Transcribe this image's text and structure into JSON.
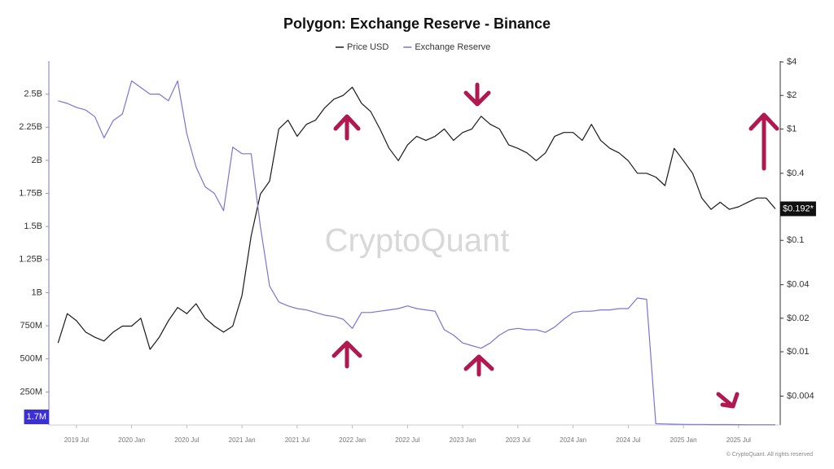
{
  "chart_data": {
    "type": "line",
    "title": "Polygon: Exchange Reserve - Binance",
    "watermark": "CryptoQuant",
    "footnote": "© CryptoQuant. All rights reserved",
    "x": [
      "2019-05",
      "2019-06",
      "2019-07",
      "2019-08",
      "2019-09",
      "2019-10",
      "2019-11",
      "2019-12",
      "2020-01",
      "2020-02",
      "2020-03",
      "2020-04",
      "2020-05",
      "2020-06",
      "2020-07",
      "2020-08",
      "2020-09",
      "2020-10",
      "2020-11",
      "2020-12",
      "2021-01",
      "2021-02",
      "2021-03",
      "2021-04",
      "2021-05",
      "2021-06",
      "2021-07",
      "2021-08",
      "2021-09",
      "2021-10",
      "2021-11",
      "2021-12",
      "2022-01",
      "2022-02",
      "2022-03",
      "2022-04",
      "2022-05",
      "2022-06",
      "2022-07",
      "2022-08",
      "2022-09",
      "2022-10",
      "2022-11",
      "2022-12",
      "2023-01",
      "2023-02",
      "2023-03",
      "2023-04",
      "2023-05",
      "2023-06",
      "2023-07",
      "2023-08",
      "2023-09",
      "2023-10",
      "2023-11",
      "2023-12",
      "2024-01",
      "2024-02",
      "2024-03",
      "2024-04",
      "2024-05",
      "2024-06",
      "2024-07",
      "2024-08",
      "2024-09",
      "2024-10",
      "2024-11",
      "2024-12",
      "2025-01",
      "2025-02",
      "2025-03",
      "2025-04",
      "2025-05",
      "2025-06",
      "2025-07",
      "2025-08",
      "2025-09",
      "2025-10",
      "2025-11"
    ],
    "xlim": [
      "2019-04",
      "2025-11"
    ],
    "xticks": [
      {
        "value": "2019-07",
        "label": "2019 Jul"
      },
      {
        "value": "2020-01",
        "label": "2020 Jan"
      },
      {
        "value": "2020-07",
        "label": "2020 Jul"
      },
      {
        "value": "2021-01",
        "label": "2021 Jan"
      },
      {
        "value": "2021-07",
        "label": "2021 Jul"
      },
      {
        "value": "2022-01",
        "label": "2022 Jan"
      },
      {
        "value": "2022-07",
        "label": "2022 Jul"
      },
      {
        "value": "2023-01",
        "label": "2023 Jan"
      },
      {
        "value": "2023-07",
        "label": "2023 Jul"
      },
      {
        "value": "2024-01",
        "label": "2024 Jan"
      },
      {
        "value": "2024-07",
        "label": "2024 Jul"
      },
      {
        "value": "2025-01",
        "label": "2025 Jan"
      },
      {
        "value": "2025-07",
        "label": "2025 Jul"
      }
    ],
    "ylim": [
      0,
      2750000000
    ],
    "yticks": [
      {
        "value": 250000000,
        "label": "250M"
      },
      {
        "value": 500000000,
        "label": "500M"
      },
      {
        "value": 750000000,
        "label": "750M"
      },
      {
        "value": 1000000000,
        "label": "1B"
      },
      {
        "value": 1250000000,
        "label": "1.25B"
      },
      {
        "value": 1500000000,
        "label": "1.5B"
      },
      {
        "value": 1750000000,
        "label": "1.75B"
      },
      {
        "value": 2000000000,
        "label": "2B"
      },
      {
        "value": 2250000000,
        "label": "2.25B"
      },
      {
        "value": 2500000000,
        "label": "2.5B"
      }
    ],
    "y2lim": [
      0.0022,
      4.07
    ],
    "y2_log": true,
    "y2ticks": [
      {
        "value": 0.004,
        "label": "$0.004"
      },
      {
        "value": 0.01,
        "label": "$0.01"
      },
      {
        "value": 0.02,
        "label": "$0.02"
      },
      {
        "value": 0.04,
        "label": "$0.04"
      },
      {
        "value": 0.1,
        "label": "$0.1"
      },
      {
        "value": 0.4,
        "label": "$0.4"
      },
      {
        "value": 1,
        "label": "$1"
      },
      {
        "value": 2,
        "label": "$2"
      },
      {
        "value": 4,
        "label": "$4"
      }
    ],
    "series": [
      {
        "name": "Price USD",
        "color": "#1a1a1a",
        "axis": "y2",
        "last_label": "$0.192*",
        "values": [
          0.012,
          0.022,
          0.019,
          0.015,
          0.0135,
          0.0125,
          0.015,
          0.017,
          0.017,
          0.02,
          0.0105,
          0.0135,
          0.019,
          0.025,
          0.022,
          0.027,
          0.02,
          0.017,
          0.015,
          0.017,
          0.032,
          0.11,
          0.26,
          0.34,
          1.0,
          1.2,
          0.86,
          1.1,
          1.2,
          1.55,
          1.85,
          2.0,
          2.37,
          1.7,
          1.43,
          1.0,
          0.67,
          0.52,
          0.72,
          0.86,
          0.79,
          0.86,
          1.0,
          0.79,
          0.93,
          1.0,
          1.3,
          1.1,
          1.0,
          0.72,
          0.67,
          0.61,
          0.52,
          0.61,
          0.86,
          0.93,
          0.93,
          0.79,
          1.1,
          0.79,
          0.67,
          0.61,
          0.52,
          0.4,
          0.4,
          0.37,
          0.31,
          0.67,
          0.52,
          0.4,
          0.24,
          0.19,
          0.22,
          0.19,
          0.2,
          0.22,
          0.24,
          0.24,
          0.192
        ]
      },
      {
        "name": "Exchange Reserve",
        "color": "#7b73d6",
        "axis": "y",
        "last_label": "1.7M",
        "values": [
          2450000000,
          2430000000,
          2400000000,
          2380000000,
          2330000000,
          2170000000,
          2300000000,
          2350000000,
          2600000000,
          2550000000,
          2500000000,
          2500000000,
          2450000000,
          2600000000,
          2200000000,
          1950000000,
          1800000000,
          1750000000,
          1620000000,
          2100000000,
          2050000000,
          2050000000,
          1500000000,
          1050000000,
          930000000,
          900000000,
          880000000,
          870000000,
          850000000,
          830000000,
          820000000,
          800000000,
          730000000,
          850000000,
          850000000,
          860000000,
          870000000,
          880000000,
          900000000,
          880000000,
          870000000,
          860000000,
          720000000,
          680000000,
          620000000,
          600000000,
          580000000,
          620000000,
          680000000,
          720000000,
          730000000,
          720000000,
          720000000,
          700000000,
          740000000,
          800000000,
          850000000,
          860000000,
          860000000,
          870000000,
          870000000,
          880000000,
          880000000,
          960000000,
          950000000,
          10000000,
          8000000,
          6000000,
          5000000,
          4000000,
          4000000,
          3000000,
          3000000,
          3000000,
          2500000,
          2000000,
          2000000,
          1800000,
          1700000
        ]
      }
    ]
  }
}
